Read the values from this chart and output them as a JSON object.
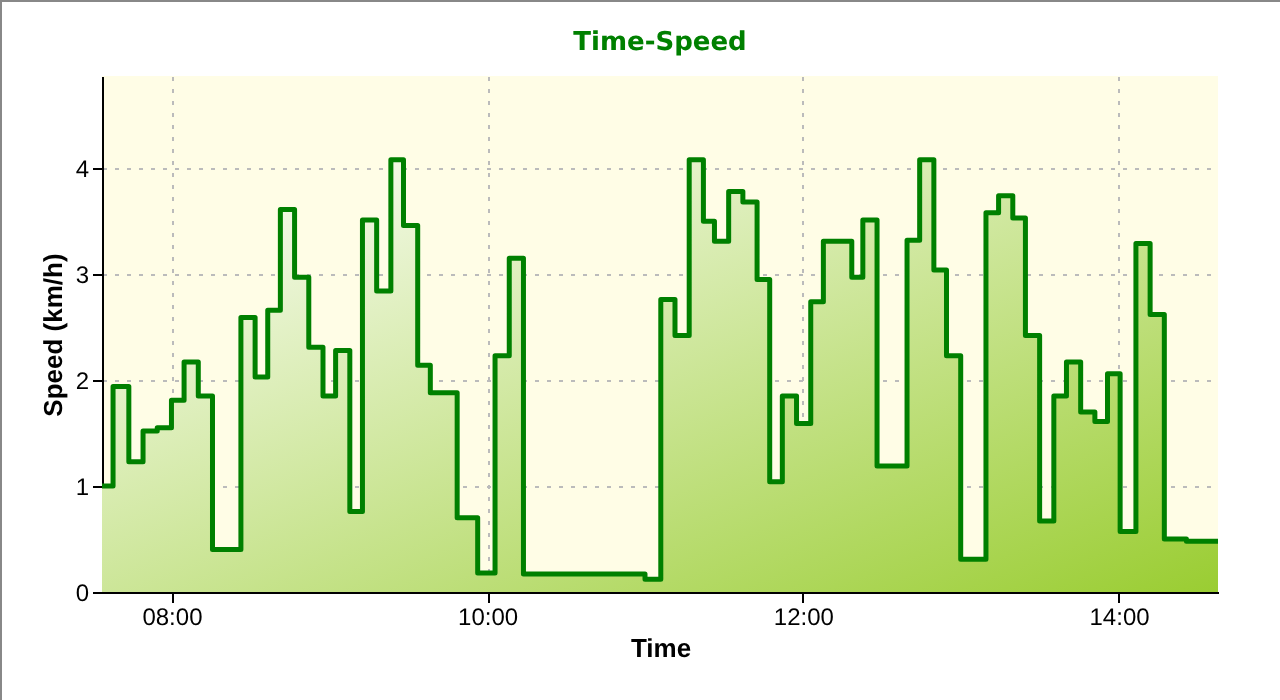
{
  "chart_data": {
    "type": "area",
    "title": "Time-Speed",
    "xlabel": "Time",
    "ylabel": "Speed (km/h)",
    "xlim": [
      7.56,
      14.63
    ],
    "ylim": [
      0,
      4.87
    ],
    "xticks": [
      {
        "value": 8,
        "label": "08:00"
      },
      {
        "value": 10,
        "label": "10:00"
      },
      {
        "value": 12,
        "label": "12:00"
      },
      {
        "value": 14,
        "label": "14:00"
      }
    ],
    "yticks": [
      0,
      1,
      2,
      3,
      4
    ],
    "grid": true,
    "series": [
      {
        "color": "#008000",
        "x": [
          7.56,
          7.63,
          7.63,
          7.73,
          7.73,
          7.82,
          7.82,
          7.91,
          7.91,
          8.0,
          8.0,
          8.08,
          8.08,
          8.17,
          8.17,
          8.26,
          8.26,
          8.44,
          8.44,
          8.53,
          8.53,
          8.61,
          8.61,
          8.69,
          8.69,
          8.78,
          8.78,
          8.87,
          8.87,
          8.96,
          8.96,
          9.04,
          9.04,
          9.13,
          9.13,
          9.21,
          9.21,
          9.3,
          9.3,
          9.39,
          9.39,
          9.47,
          9.47,
          9.56,
          9.56,
          9.64,
          9.64,
          9.81,
          9.81,
          9.94,
          9.94,
          10.05,
          10.05,
          10.14,
          10.14,
          10.23,
          10.23,
          11.0,
          11.0,
          11.1,
          11.1,
          11.19,
          11.19,
          11.28,
          11.28,
          11.37,
          11.37,
          11.44,
          11.44,
          11.53,
          11.53,
          11.62,
          11.62,
          11.71,
          11.71,
          11.79,
          11.79,
          11.87,
          11.87,
          11.96,
          11.96,
          12.05,
          12.05,
          12.13,
          12.13,
          12.31,
          12.31,
          12.38,
          12.38,
          12.47,
          12.47,
          12.66,
          12.66,
          12.74,
          12.74,
          12.83,
          12.83,
          12.91,
          12.91,
          13.0,
          13.0,
          13.16,
          13.16,
          13.24,
          13.24,
          13.33,
          13.33,
          13.41,
          13.41,
          13.5,
          13.5,
          13.59,
          13.59,
          13.67,
          13.67,
          13.76,
          13.76,
          13.85,
          13.85,
          13.93,
          13.93,
          14.01,
          14.01,
          14.11,
          14.11,
          14.2,
          14.2,
          14.29,
          14.29,
          14.43,
          14.43,
          14.63
        ],
        "values": [
          1.0,
          1.0,
          1.94,
          1.94,
          1.23,
          1.23,
          1.52,
          1.52,
          1.55,
          1.55,
          1.81,
          1.81,
          2.17,
          2.17,
          1.85,
          1.85,
          0.4,
          0.4,
          2.59,
          2.59,
          2.03,
          2.03,
          2.66,
          2.66,
          3.61,
          3.61,
          2.97,
          2.97,
          2.31,
          2.31,
          1.85,
          1.85,
          2.28,
          2.28,
          0.76,
          0.76,
          3.51,
          3.51,
          2.84,
          2.84,
          4.08,
          4.08,
          3.46,
          3.46,
          2.14,
          2.14,
          1.88,
          1.88,
          0.7,
          0.7,
          0.18,
          0.18,
          2.23,
          2.23,
          3.15,
          3.15,
          0.17,
          0.17,
          0.12,
          0.12,
          2.76,
          2.76,
          2.42,
          2.42,
          4.08,
          4.08,
          3.5,
          3.5,
          3.31,
          3.31,
          3.78,
          3.78,
          3.68,
          3.68,
          2.95,
          2.95,
          1.04,
          1.04,
          1.85,
          1.85,
          1.59,
          1.59,
          2.74,
          2.74,
          3.31,
          3.31,
          2.97,
          2.97,
          3.51,
          3.51,
          1.19,
          1.19,
          3.32,
          3.32,
          4.08,
          4.08,
          3.04,
          3.04,
          2.23,
          2.23,
          0.31,
          0.31,
          3.58,
          3.58,
          3.74,
          3.74,
          3.53,
          3.53,
          2.42,
          2.42,
          0.67,
          0.67,
          1.85,
          1.85,
          2.17,
          2.17,
          1.7,
          1.7,
          1.61,
          1.61,
          2.06,
          2.06,
          0.57,
          0.57,
          3.29,
          3.29,
          2.62,
          2.62,
          0.5,
          0.5,
          0.48,
          0.48
        ]
      }
    ]
  }
}
